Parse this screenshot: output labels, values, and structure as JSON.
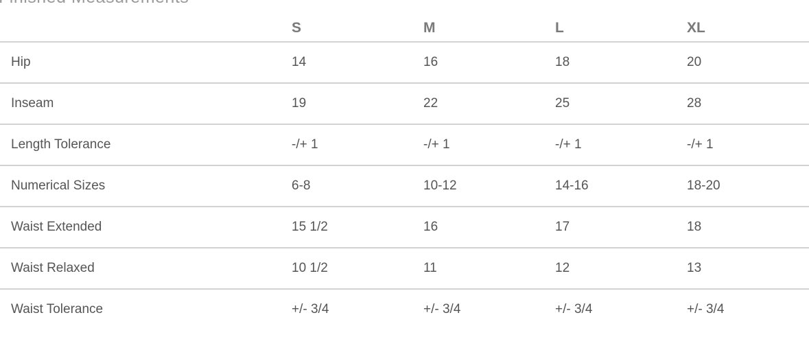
{
  "title": "Finished Measurements",
  "columns": [
    "",
    "S",
    "M",
    "L",
    "XL"
  ],
  "rows": [
    [
      "Hip",
      "14",
      "16",
      "18",
      "20"
    ],
    [
      "Inseam",
      "19",
      "22",
      "25",
      "28"
    ],
    [
      "Length Tolerance",
      "-/+ 1",
      "-/+ 1",
      "-/+ 1",
      "-/+ 1"
    ],
    [
      "Numerical Sizes",
      "6-8",
      "10-12",
      "14-16",
      "18-20"
    ],
    [
      "Waist Extended",
      "15 1/2",
      "16",
      "17",
      "18"
    ],
    [
      "Waist Relaxed",
      "10 1/2",
      "11",
      "12",
      "13"
    ],
    [
      "Waist Tolerance",
      "+/- 3/4",
      "+/- 3/4",
      "+/- 3/4",
      "+/- 3/4"
    ]
  ]
}
